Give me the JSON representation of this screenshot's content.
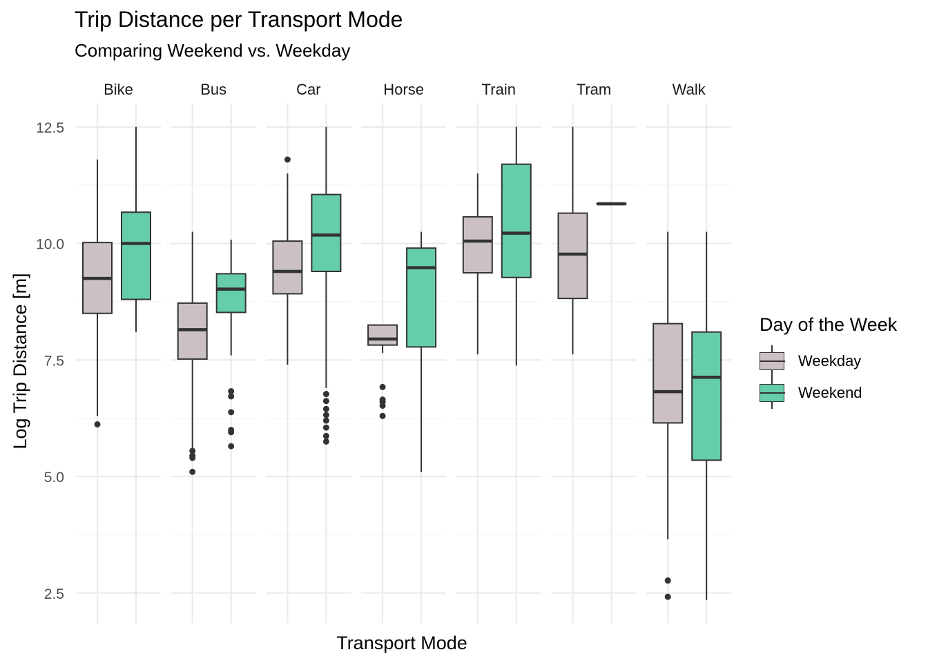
{
  "chart_data": {
    "type": "boxplot",
    "title": "Trip Distance per Transport Mode",
    "subtitle": "Comparing Weekend vs. Weekday",
    "xlabel": "Transport Mode",
    "ylabel": "Log Trip Distance [m]",
    "ylim": [
      1.95,
      12.95
    ],
    "yticks": [
      2.5,
      5.0,
      7.5,
      10.0,
      12.5
    ],
    "ytick_labels": [
      "2.5",
      "5.0",
      "7.5",
      "10.0",
      "12.5"
    ],
    "legend": {
      "title": "Day of the Week",
      "position": "right",
      "entries": [
        {
          "name": "Weekday",
          "color": "#CBC0C3"
        },
        {
          "name": "Weekend",
          "color": "#66CDAA"
        }
      ]
    },
    "outline_color": "#333333",
    "facets": [
      {
        "label": "Bike",
        "boxes": [
          {
            "group": "Weekday",
            "min": 6.3,
            "q1": 8.5,
            "median": 9.25,
            "q3": 10.02,
            "max": 11.8,
            "outliers": [
              6.12
            ]
          },
          {
            "group": "Weekend",
            "min": 8.1,
            "q1": 8.8,
            "median": 10.0,
            "q3": 10.67,
            "max": 12.5,
            "outliers": []
          }
        ]
      },
      {
        "label": "Bus",
        "boxes": [
          {
            "group": "Weekday",
            "min": 5.6,
            "q1": 7.52,
            "median": 8.15,
            "q3": 8.72,
            "max": 10.25,
            "outliers": [
              5.1,
              5.4,
              5.45,
              5.55
            ]
          },
          {
            "group": "Weekend",
            "min": 7.6,
            "q1": 8.52,
            "median": 9.02,
            "q3": 9.35,
            "max": 10.08,
            "outliers": [
              5.65,
              5.95,
              6.0,
              6.38,
              6.72,
              6.83
            ]
          }
        ]
      },
      {
        "label": "Car",
        "boxes": [
          {
            "group": "Weekday",
            "min": 7.4,
            "q1": 8.92,
            "median": 9.4,
            "q3": 10.05,
            "max": 11.5,
            "outliers": [
              11.8
            ]
          },
          {
            "group": "Weekend",
            "min": 6.9,
            "q1": 9.4,
            "median": 10.18,
            "q3": 11.05,
            "max": 12.5,
            "outliers": [
              5.75,
              5.87,
              6.05,
              6.2,
              6.32,
              6.45,
              6.62,
              6.77
            ]
          }
        ]
      },
      {
        "label": "Horse",
        "boxes": [
          {
            "group": "Weekday",
            "min": 7.65,
            "q1": 7.82,
            "median": 7.95,
            "q3": 8.25,
            "max": 8.25,
            "outliers": [
              6.3,
              6.52,
              6.6,
              6.65,
              6.92
            ]
          },
          {
            "group": "Weekend",
            "min": 5.1,
            "q1": 7.78,
            "median": 9.48,
            "q3": 9.9,
            "max": 10.25,
            "outliers": []
          }
        ]
      },
      {
        "label": "Train",
        "boxes": [
          {
            "group": "Weekday",
            "min": 7.62,
            "q1": 9.37,
            "median": 10.05,
            "q3": 10.57,
            "max": 11.5,
            "outliers": []
          },
          {
            "group": "Weekend",
            "min": 7.38,
            "q1": 9.27,
            "median": 10.22,
            "q3": 11.7,
            "max": 12.5,
            "outliers": []
          }
        ]
      },
      {
        "label": "Tram",
        "boxes": [
          {
            "group": "Weekday",
            "min": 7.62,
            "q1": 8.82,
            "median": 9.77,
            "q3": 10.65,
            "max": 12.5,
            "outliers": []
          },
          {
            "group": "Weekend",
            "min": 10.85,
            "q1": 10.85,
            "median": 10.85,
            "q3": 10.85,
            "max": 10.85,
            "outliers": []
          }
        ]
      },
      {
        "label": "Walk",
        "boxes": [
          {
            "group": "Weekday",
            "min": 3.65,
            "q1": 6.15,
            "median": 6.82,
            "q3": 8.28,
            "max": 10.25,
            "outliers": [
              2.42,
              2.77
            ]
          },
          {
            "group": "Weekend",
            "min": 2.35,
            "q1": 5.35,
            "median": 7.13,
            "q3": 8.1,
            "max": 10.25,
            "outliers": []
          }
        ]
      }
    ]
  }
}
